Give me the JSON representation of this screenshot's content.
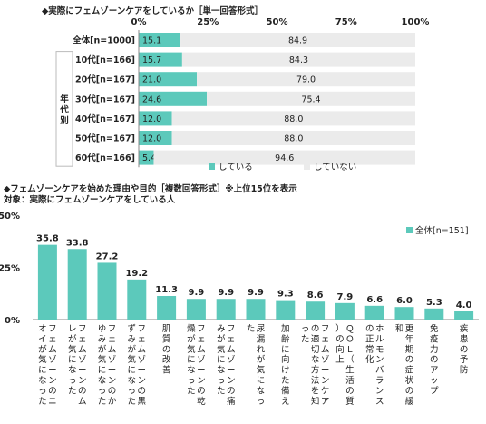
{
  "colors": {
    "teal": "#5CC9BB",
    "gray": "#EBEBEB",
    "axis": "#888888",
    "text": "#222222"
  },
  "chart_data": [
    {
      "type": "bar",
      "orientation": "horizontal-stacked",
      "title": "◆実際にフェムゾーンケアをしているか［単一回答形式］",
      "group_label": "年代別",
      "categories": [
        "全体[n=1000]",
        "10代[n=166]",
        "20代[n=167]",
        "30代[n=167]",
        "40代[n=167]",
        "50代[n=167]",
        "60代[n=166]"
      ],
      "series": [
        {
          "name": "している",
          "values": [
            15.1,
            15.7,
            21.0,
            24.6,
            12.0,
            12.0,
            5.4
          ]
        },
        {
          "name": "していない",
          "values": [
            84.9,
            84.3,
            79.0,
            75.4,
            88.0,
            88.0,
            94.6
          ]
        }
      ],
      "xticks": [
        "0%",
        "25%",
        "50%",
        "75%",
        "100%"
      ],
      "xlim": [
        0,
        100
      ],
      "legend_position": "bottom"
    },
    {
      "type": "bar",
      "title": "◆フェムゾーンケアを始めた理由や目的［複数回答形式］※上位15位を表示",
      "subtitle": "対象：実際にフェムゾーンケアをしている人",
      "categories": [
        "フェムゾーンのニオイが気になった",
        "フェムゾーンのムレが気になった",
        "フェムゾーンのかゆみが気になった",
        "フェムゾーンの黒ずみが気になった",
        "肌質の改善",
        "フェムゾーンの乾燥が気になった",
        "フェムゾーンの痛みが気になった",
        "尿漏れが気になった",
        "加齢に向けた備え",
        "フェムゾーンケアの適切な方法を知った",
        "ＱＯＬ（生活の質）の向上",
        "ホルモンバランスの正常化",
        "更年期の症状の緩和",
        "免疫力のアップ",
        "疾患の予防"
      ],
      "series": [
        {
          "name": "全体[n=151]",
          "values": [
            35.8,
            33.8,
            27.2,
            19.2,
            11.3,
            9.9,
            9.9,
            9.9,
            9.3,
            8.6,
            7.9,
            6.6,
            6.0,
            5.3,
            4.0
          ]
        }
      ],
      "yticks": [
        "0%",
        "25%",
        "50%"
      ],
      "ylim": [
        0,
        50
      ],
      "legend_position": "top-right"
    }
  ]
}
